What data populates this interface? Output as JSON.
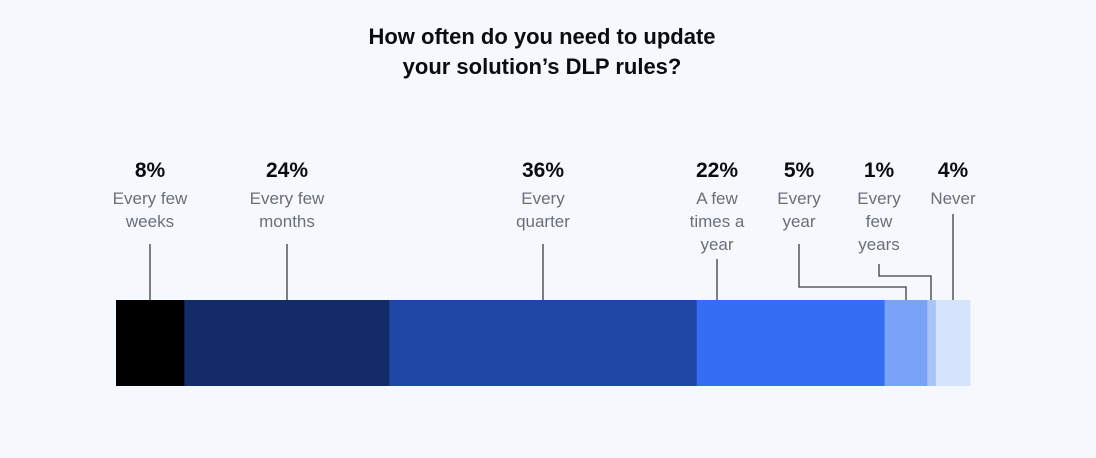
{
  "chart_data": {
    "type": "bar",
    "orientation": "horizontal-stacked-100",
    "title_lines": [
      "How often do you need to update",
      "your solution’s DLP rules?"
    ],
    "xlabel": "",
    "ylabel": "",
    "legend": "none",
    "grid": false,
    "series": [
      {
        "category": "Every few weeks",
        "label_lines": [
          "Every few",
          "weeks"
        ],
        "value": 8,
        "value_label": "8%",
        "color": "#000000"
      },
      {
        "category": "Every few months",
        "label_lines": [
          "Every few",
          "months"
        ],
        "value": 24,
        "value_label": "24%",
        "color": "#132b66"
      },
      {
        "category": "Every quarter",
        "label_lines": [
          "Every",
          "quarter"
        ],
        "value": 36,
        "value_label": "36%",
        "color": "#2147a6"
      },
      {
        "category": "A few times a year",
        "label_lines": [
          "A few",
          "times a",
          "year"
        ],
        "value": 22,
        "value_label": "22%",
        "color": "#356ef5"
      },
      {
        "category": "Every year",
        "label_lines": [
          "Every",
          "year"
        ],
        "value": 5,
        "value_label": "5%",
        "color": "#7aa3f7"
      },
      {
        "category": "Every few years",
        "label_lines": [
          "Every",
          "few",
          "years"
        ],
        "value": 1,
        "value_label": "1%",
        "color": "#a9c4f8"
      },
      {
        "category": "Never",
        "label_lines": [
          "Never"
        ],
        "value": 4,
        "value_label": "4%",
        "color": "#d6e3fd"
      }
    ]
  }
}
